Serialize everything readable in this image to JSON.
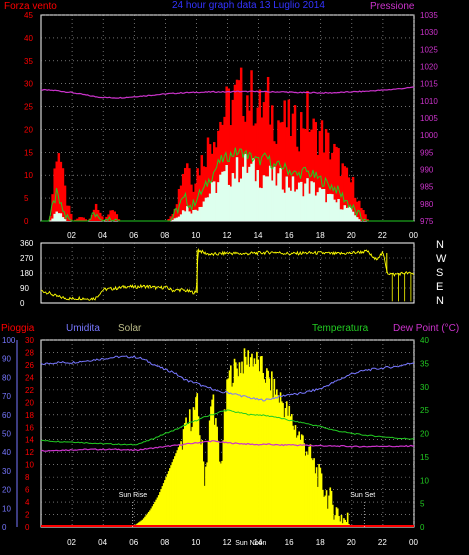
{
  "header": {
    "left_label": "Forza vento",
    "title": "24 hour graph data  13 Luglio 2014",
    "right_label": "Pressione"
  },
  "colors": {
    "gust": "#ff0000",
    "wind_avg": "#22cc22",
    "wind_fill": "#ddffee",
    "pressure": "#cc33cc",
    "direction": "#ffff00",
    "humidity": "#7777ff",
    "solar": "#ffff00",
    "temperature": "#22cc22",
    "dewpoint": "#cc33cc",
    "rain": "#ff0000",
    "frame": "#ffffff",
    "grid": "#b4b4b4",
    "left_axis": "#ff0000",
    "pressure_axis": "#cc33cc",
    "humidity_axis": "#7777ff",
    "temp_axis": "#22cc22"
  },
  "chart_data": [
    {
      "type": "line",
      "name": "wind",
      "x_ticks": [
        "02",
        "04",
        "06",
        "08",
        "10",
        "12",
        "14",
        "16",
        "18",
        "20",
        "22",
        "00"
      ],
      "y_left_ticks": [
        0,
        5,
        10,
        15,
        20,
        25,
        30,
        35,
        40,
        45
      ],
      "y_left_range": [
        0,
        45
      ],
      "y_right_ticks": [
        975,
        980,
        985,
        990,
        995,
        1000,
        1005,
        1010,
        1015,
        1020,
        1025,
        1030,
        1035
      ],
      "y_right_range": [
        975,
        1035
      ],
      "grid": true,
      "x_hours": [
        0,
        0.5,
        1,
        1.3,
        1.6,
        2,
        2.5,
        3,
        3.5,
        4,
        4.5,
        5,
        5.5,
        6,
        6.5,
        7,
        7.5,
        8,
        8.3,
        8.7,
        9,
        9.3,
        9.7,
        10,
        10.5,
        11,
        11.5,
        12,
        12.5,
        13,
        13.5,
        14,
        14.5,
        15,
        15.5,
        16,
        16.5,
        17,
        17.5,
        18,
        18.5,
        19,
        19.5,
        20,
        20.5,
        21,
        21.5,
        22,
        22.5,
        23,
        23.5,
        24
      ],
      "series": [
        {
          "name": "gust",
          "values": [
            0,
            0,
            18,
            10,
            4,
            0,
            1,
            0,
            4,
            0,
            3,
            0,
            0,
            0,
            0,
            0,
            0,
            0,
            1,
            5,
            10,
            14,
            8,
            11,
            15,
            19,
            22,
            25,
            27,
            28,
            27,
            24,
            26,
            22,
            22,
            21,
            20,
            24,
            19,
            19,
            16,
            14,
            10,
            8,
            3,
            0,
            0,
            0,
            0,
            0,
            0,
            0
          ]
        },
        {
          "name": "wind_avg",
          "values": [
            0,
            0,
            6,
            3,
            1,
            0,
            0,
            0,
            1,
            0,
            1,
            0,
            0,
            0,
            0,
            0,
            0,
            0,
            0,
            2,
            4,
            5,
            3,
            5,
            7,
            10,
            13,
            14,
            15,
            15,
            14,
            13,
            14,
            12,
            12,
            11,
            10,
            11,
            10,
            9,
            8,
            7,
            5,
            3,
            1,
            0,
            0,
            0,
            0,
            0,
            0,
            0
          ]
        },
        {
          "name": "wind_fill",
          "values": [
            0,
            0,
            2,
            1,
            0,
            0,
            0,
            0,
            0,
            0,
            0,
            0,
            0,
            0,
            0,
            0,
            0,
            0,
            0,
            1,
            2,
            3,
            2,
            3,
            5,
            7,
            9,
            10,
            11,
            12,
            11,
            10,
            10,
            9,
            9,
            8,
            7,
            8,
            7,
            6,
            5,
            4,
            3,
            2,
            0,
            0,
            0,
            0,
            0,
            0,
            0,
            0
          ]
        },
        {
          "name": "pressure",
          "values": [
            1013.2,
            1013.1,
            1013.0,
            1012.8,
            1012.6,
            1012.4,
            1012.0,
            1011.6,
            1011.2,
            1011.0,
            1010.9,
            1010.9,
            1011.0,
            1011.2,
            1011.4,
            1011.6,
            1011.8,
            1012.0,
            1012.1,
            1012.2,
            1012.3,
            1012.4,
            1012.4,
            1012.5,
            1012.5,
            1012.6,
            1012.6,
            1012.6,
            1012.7,
            1012.7,
            1012.7,
            1012.7,
            1012.6,
            1012.6,
            1012.6,
            1012.5,
            1012.4,
            1012.4,
            1012.4,
            1012.3,
            1012.3,
            1012.4,
            1012.5,
            1012.6,
            1012.7,
            1012.8,
            1013.0,
            1013.1,
            1013.3,
            1013.5,
            1013.7,
            1014.0
          ]
        }
      ]
    },
    {
      "type": "line",
      "name": "direction",
      "y_ticks": [
        0,
        90,
        180,
        270,
        360
      ],
      "y_range": [
        0,
        360
      ],
      "compass_labels": [
        "N",
        "W",
        "S",
        "E",
        "N"
      ],
      "grid": true,
      "x_hours": [
        0,
        0.5,
        1,
        1.5,
        2,
        2.5,
        3,
        3.5,
        4,
        4.5,
        5,
        5.5,
        6,
        6.5,
        7,
        7.5,
        8,
        8.5,
        9,
        9.5,
        10,
        10.1,
        10.5,
        11,
        12,
        13,
        14,
        15,
        16,
        17,
        18,
        19,
        20,
        21,
        21.5,
        22,
        22.3,
        22.7,
        23,
        23.5,
        24
      ],
      "series": [
        {
          "name": "wind_direction",
          "values": [
            75,
            60,
            40,
            30,
            25,
            30,
            25,
            28,
            80,
            85,
            90,
            100,
            95,
            100,
            98,
            90,
            95,
            75,
            80,
            70,
            60,
            320,
            300,
            290,
            300,
            295,
            300,
            305,
            295,
            300,
            300,
            295,
            300,
            310,
            260,
            300,
            180,
            170,
            175,
            180,
            175
          ]
        }
      ]
    },
    {
      "type": "line",
      "name": "thermo",
      "x_ticks": [
        "02",
        "04",
        "06",
        "08",
        "10",
        "12",
        "14",
        "16",
        "18",
        "20",
        "22",
        "00"
      ],
      "x_range": [
        0,
        24
      ],
      "y_left_ticks": [
        0,
        10,
        20,
        30,
        40,
        50,
        60,
        70,
        80,
        90,
        100
      ],
      "y_left_range": [
        0,
        100
      ],
      "y_mid_ticks": [
        0,
        2,
        4,
        6,
        8,
        10,
        12,
        14,
        16,
        18,
        20,
        22,
        24,
        26,
        28,
        30
      ],
      "y_mid_range": [
        0,
        30
      ],
      "y_right_ticks": [
        0,
        5,
        10,
        15,
        20,
        25,
        30,
        35,
        40
      ],
      "y_right_range": [
        0,
        40
      ],
      "legend": [
        "Pioggia",
        "Umidita",
        "Solar",
        "Temperatura",
        "Dew Point (°C)"
      ],
      "annotations": [
        {
          "label": "Sun Rise",
          "hour": 5.9
        },
        {
          "label": "Sun Set",
          "hour": 20.8
        },
        {
          "label": "Sun Noon",
          "hour": 13.4
        }
      ],
      "grid": true,
      "x_hours": [
        0,
        1,
        2,
        3,
        4,
        5,
        5.5,
        6,
        6.5,
        7,
        7.5,
        8,
        8.5,
        9,
        9.5,
        10,
        10.5,
        11,
        11.5,
        12,
        12.5,
        13,
        13.5,
        14,
        14.5,
        15,
        15.5,
        16,
        16.5,
        17,
        17.5,
        18,
        18.5,
        19,
        19.5,
        20,
        20.5,
        21,
        22,
        23,
        24
      ],
      "series": [
        {
          "name": "Umidita",
          "values": [
            87,
            88,
            88,
            89,
            90,
            91,
            91,
            91,
            90,
            88,
            86,
            84,
            83,
            80,
            78,
            77,
            75,
            74,
            72,
            72,
            71,
            70,
            69,
            68,
            68,
            69,
            70,
            71,
            71,
            72,
            73,
            74,
            76,
            78,
            80,
            82,
            83,
            84,
            85,
            86,
            88
          ]
        },
        {
          "name": "Solar",
          "values": [
            0,
            0,
            0,
            0,
            0,
            0,
            0,
            0.3,
            1.2,
            2.8,
            5.0,
            8.0,
            11.0,
            14.0,
            17.0,
            19.5,
            8,
            21.5,
            9,
            24.0,
            25.5,
            26.5,
            27.5,
            26.0,
            24.0,
            22.0,
            20.0,
            17.5,
            15.0,
            13.0,
            10.0,
            7.0,
            4.5,
            2.5,
            1.2,
            0.4,
            0,
            0,
            0,
            0,
            0
          ]
        },
        {
          "name": "Temperatura",
          "values": [
            18.5,
            18.3,
            18.2,
            18.0,
            17.8,
            17.7,
            17.6,
            17.6,
            18.0,
            18.6,
            19.3,
            20.0,
            20.6,
            21.3,
            22.2,
            22.8,
            23.5,
            24.0,
            24.6,
            25.0,
            24.6,
            24.3,
            24.0,
            24.0,
            23.8,
            23.6,
            23.2,
            22.8,
            22.5,
            22.2,
            21.8,
            21.5,
            21.0,
            20.6,
            20.3,
            20.0,
            19.8,
            19.6,
            19.3,
            19.0,
            18.8
          ]
        },
        {
          "name": "Dew Point (°C)",
          "values": [
            16.3,
            16.4,
            16.5,
            16.6,
            16.6,
            16.6,
            16.5,
            16.4,
            16.6,
            16.8,
            17.0,
            17.2,
            17.4,
            17.6,
            17.8,
            18.0,
            18.2,
            18.4,
            18.2,
            18.0,
            17.9,
            17.8,
            17.7,
            17.6,
            17.7,
            17.6,
            17.5,
            17.6,
            17.5,
            17.5,
            17.4,
            17.4,
            17.3,
            17.3,
            17.3,
            17.2,
            17.2,
            17.2,
            17.3,
            17.2,
            17.4
          ]
        },
        {
          "name": "Pioggia",
          "values": [
            0,
            0,
            0,
            0,
            0,
            0,
            0,
            0,
            0,
            0,
            0,
            0,
            0,
            0,
            0,
            0,
            0,
            0,
            0,
            0,
            0,
            0,
            0,
            0,
            0,
            0,
            0,
            0,
            0,
            0,
            0,
            0,
            0,
            0,
            0,
            0,
            0,
            0,
            0,
            0,
            0
          ]
        }
      ]
    }
  ]
}
